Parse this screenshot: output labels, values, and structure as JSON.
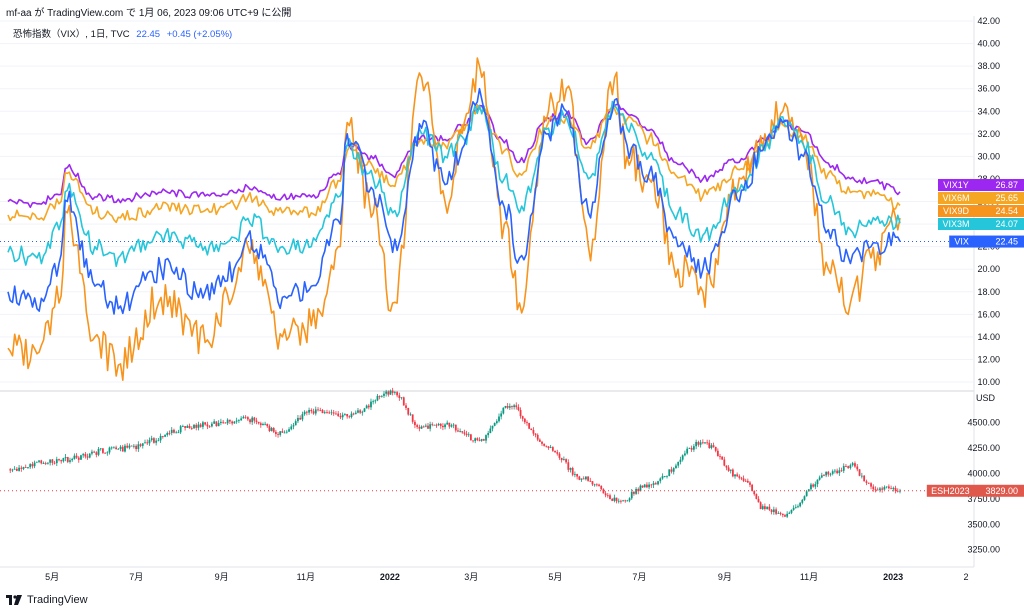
{
  "header": {
    "title": "mf-aa が TradingView.com で 1月 06, 2023 09:06 UTC+9 に公開"
  },
  "legend": {
    "label": "恐怖指数（VIX）, 1日, TVC",
    "value": "22.45",
    "change": "+0.45 (+2.05%)"
  },
  "brand": {
    "name": "TradingView"
  },
  "chart_data": [
    {
      "type": "line",
      "title": "恐怖指数（VIX）, 1日, TVC",
      "x_tick_labels": [
        "5月",
        "7月",
        "9月",
        "11月",
        "2022",
        "3月",
        "5月",
        "7月",
        "9月",
        "11月",
        "2023",
        "2"
      ],
      "y_tick_labels": [
        "10.00",
        "12.00",
        "14.00",
        "16.00",
        "18.00",
        "20.00",
        "22.00",
        "24.00",
        "26.00",
        "28.00",
        "30.00",
        "32.00",
        "34.00",
        "36.00",
        "38.00",
        "40.00",
        "42.00"
      ],
      "ylim": [
        10,
        42
      ],
      "x_range": [
        "2021-03-30",
        "2023-01-06"
      ],
      "x_dates": [
        "2021-03-30",
        "2021-04-20",
        "2021-05-06",
        "2021-05-12",
        "2021-06-01",
        "2021-06-18",
        "2021-07-19",
        "2021-08-20",
        "2021-09-10",
        "2021-09-20",
        "2021-10-15",
        "2021-11-05",
        "2021-11-26",
        "2021-12-01",
        "2021-12-20",
        "2022-01-03",
        "2022-01-24",
        "2022-02-10",
        "2022-02-24",
        "2022-03-07",
        "2022-03-25",
        "2022-04-05",
        "2022-04-26",
        "2022-05-09",
        "2022-05-25",
        "2022-06-13",
        "2022-06-22",
        "2022-07-08",
        "2022-07-29",
        "2022-08-16",
        "2022-09-13",
        "2022-09-30",
        "2022-10-13",
        "2022-10-28",
        "2022-11-15",
        "2022-12-01",
        "2022-12-16",
        "2023-01-06"
      ],
      "series": [
        {
          "name": "VIX1Y",
          "color": "#9c27f0",
          "last": "26.87",
          "values": [
            26.0,
            25.8,
            26.6,
            29.0,
            26.4,
            26.2,
            26.8,
            26.5,
            26.8,
            27.3,
            26.4,
            26.4,
            28.4,
            31.0,
            29.8,
            28.3,
            31.8,
            31.5,
            32.8,
            34.5,
            31.2,
            29.5,
            33.4,
            33.8,
            31.3,
            34.5,
            33.8,
            32.3,
            29.3,
            28.0,
            29.8,
            31.5,
            33.0,
            32.2,
            29.4,
            28.0,
            27.8,
            26.87
          ]
        },
        {
          "name": "VIX6M",
          "color": "#f5a623",
          "last": "25.65",
          "values": [
            24.8,
            24.5,
            25.8,
            28.5,
            25.0,
            24.6,
            25.4,
            25.2,
            25.7,
            26.4,
            25.0,
            25.0,
            27.8,
            30.5,
            29.0,
            27.4,
            31.5,
            31.0,
            32.3,
            34.2,
            30.5,
            28.5,
            33.0,
            33.5,
            30.8,
            34.2,
            33.3,
            31.6,
            28.1,
            26.5,
            28.9,
            30.9,
            32.8,
            31.5,
            28.5,
            26.8,
            26.5,
            25.65
          ]
        },
        {
          "name": "VIX9D",
          "color": "#f7941d",
          "last": "24.54",
          "values": [
            13.0,
            12.5,
            17.0,
            25.0,
            14.0,
            11.5,
            17.5,
            13.5,
            18.0,
            22.0,
            14.0,
            15.0,
            22.0,
            33.0,
            25.0,
            17.0,
            37.0,
            26.0,
            33.0,
            38.0,
            24.0,
            17.0,
            34.0,
            36.0,
            22.0,
            37.0,
            30.0,
            28.0,
            20.0,
            18.0,
            28.0,
            32.0,
            34.0,
            31.0,
            20.0,
            17.0,
            21.0,
            24.54
          ]
        },
        {
          "name": "VIX3M",
          "color": "#26c6da",
          "last": "24.07",
          "values": [
            21.5,
            21.0,
            23.5,
            27.0,
            22.0,
            21.0,
            23.0,
            22.0,
            22.8,
            24.5,
            22.0,
            22.0,
            26.5,
            31.0,
            28.0,
            25.0,
            32.0,
            30.0,
            31.5,
            34.5,
            28.0,
            25.0,
            32.5,
            33.5,
            28.0,
            34.5,
            32.5,
            30.0,
            25.0,
            23.0,
            27.5,
            30.5,
            33.5,
            31.0,
            26.0,
            23.5,
            24.0,
            24.07
          ]
        },
        {
          "name": "VIX",
          "color": "#2962ff",
          "last": "22.45",
          "values": [
            18.0,
            16.5,
            20.5,
            26.0,
            18.5,
            16.5,
            20.0,
            18.0,
            20.0,
            23.0,
            17.5,
            18.5,
            24.0,
            32.0,
            27.0,
            21.5,
            32.5,
            27.5,
            31.0,
            36.0,
            25.5,
            21.0,
            32.0,
            34.0,
            25.0,
            35.0,
            31.0,
            28.5,
            22.0,
            20.0,
            27.0,
            31.0,
            33.0,
            30.0,
            23.5,
            20.5,
            22.0,
            22.45
          ]
        }
      ]
    },
    {
      "type": "line",
      "title": "ESH2023",
      "y_tick_labels": [
        "USD",
        "4500.00",
        "4250.00",
        "4000.00",
        "3750.00",
        "3500.00",
        "3250.00"
      ],
      "ylim": [
        3100,
        4750
      ],
      "x_dates": [
        "2021-03-30",
        "2021-05-06",
        "2021-06-18",
        "2021-08-20",
        "2021-09-20",
        "2021-10-15",
        "2021-11-05",
        "2021-12-01",
        "2022-01-03",
        "2022-01-24",
        "2022-02-10",
        "2022-03-07",
        "2022-03-29",
        "2022-04-26",
        "2022-05-20",
        "2022-06-16",
        "2022-07-08",
        "2022-08-16",
        "2022-09-13",
        "2022-09-30",
        "2022-10-13",
        "2022-11-15",
        "2022-12-01",
        "2022-12-16",
        "2023-01-06"
      ],
      "series": [
        {
          "name": "ESH2023",
          "color": "#089981",
          "down_color": "#f23645",
          "last": "3829.00",
          "values": [
            4040,
            4130,
            4240,
            4480,
            4530,
            4400,
            4610,
            4560,
            4790,
            4460,
            4480,
            4320,
            4660,
            4250,
            3950,
            3730,
            3890,
            4300,
            3950,
            3650,
            3590,
            3990,
            4080,
            3870,
            3829
          ]
        }
      ]
    }
  ]
}
